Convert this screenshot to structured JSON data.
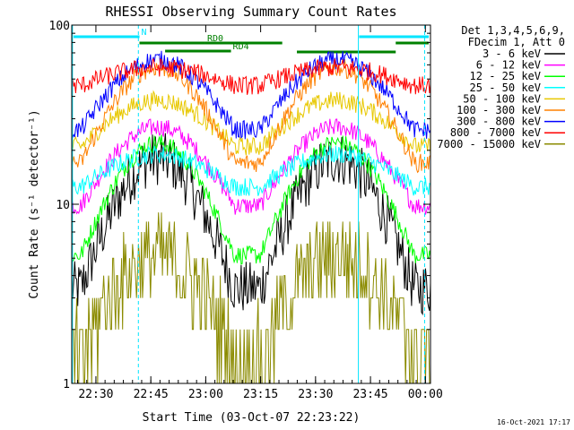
{
  "chart_data": {
    "type": "line",
    "title": "RHESSI Observing Summary Count Rates",
    "xlabel": "Start Time (03-Oct-07 22:23:22)",
    "ylabel": "Count Rate (s⁻¹ detector⁻¹)",
    "yscale": "log",
    "ylim": [
      1,
      100
    ],
    "xlim_minutes": [
      0,
      98
    ],
    "x_ticks": [
      {
        "label": "22:30",
        "minute": 6.6
      },
      {
        "label": "22:45",
        "minute": 21.6
      },
      {
        "label": "23:00",
        "minute": 36.6
      },
      {
        "label": "23:15",
        "minute": 51.6
      },
      {
        "label": "23:30",
        "minute": 66.6
      },
      {
        "label": "23:45",
        "minute": 81.6
      },
      {
        "label": "00:00",
        "minute": 96.6
      }
    ],
    "y_ticks": [
      {
        "label": "1",
        "value": 1
      },
      {
        "label": "10",
        "value": 10
      },
      {
        "label": "100",
        "value": 100
      }
    ],
    "legend_header": [
      "Det 1,3,4,5,6,9,",
      "FDecim 1, Att 0"
    ],
    "legend_position": "top-right",
    "series": [
      {
        "name": "3 - 6 keV",
        "color": "#000000",
        "base": 3.4,
        "peak": 18.0
      },
      {
        "name": "6 - 12 keV",
        "color": "#ff00ff",
        "base": 9.8,
        "peak": 27.0
      },
      {
        "name": "12 - 25 keV",
        "color": "#00ff00",
        "base": 5.2,
        "peak": 22.0
      },
      {
        "name": "25 - 50 keV",
        "color": "#00ffff",
        "base": 12.5,
        "peak": 19.0
      },
      {
        "name": "50 - 100 keV",
        "color": "#e8c800",
        "base": 21.0,
        "peak": 38.0
      },
      {
        "name": "100 - 300 keV",
        "color": "#ff8000",
        "base": 17.0,
        "peak": 58.0
      },
      {
        "name": "300 - 800 keV",
        "color": "#0000ff",
        "base": 26.0,
        "peak": 64.0
      },
      {
        "name": "800 - 7000 keV",
        "color": "#ff0000",
        "base": 46.0,
        "peak": 58.0
      },
      {
        "name": "7000 - 15000 keV",
        "color": "#8b8b00",
        "base": 1.5,
        "peak": 5.2
      }
    ],
    "bars": [
      {
        "label": "N",
        "color": "#00e5ff",
        "start": 0.5,
        "end": 18.5
      },
      {
        "label": "",
        "color": "#00e5ff",
        "start": 78.5,
        "end": 97.5
      },
      {
        "label": "RD0",
        "color": "#008000",
        "start": 18.5,
        "end": 36.5
      },
      {
        "label": "",
        "color": "#008000",
        "start": 36.5,
        "end": 57.5
      },
      {
        "label": "",
        "color": "#008000",
        "start": 61.5,
        "end": 88.5
      },
      {
        "label": "",
        "color": "#008000",
        "start": 88.5,
        "end": 97.5
      },
      {
        "label": "RD4",
        "color": "#008000",
        "start": 25.5,
        "end": 43.5
      }
    ],
    "vertical_lines": [
      {
        "minute": 0.2,
        "style": "solid"
      },
      {
        "minute": 18.2,
        "style": "dashed"
      },
      {
        "minute": 78.3,
        "style": "solid"
      },
      {
        "minute": 96.4,
        "style": "dashed"
      }
    ],
    "saa_minutes": [
      [
        0,
        7
      ],
      [
        43,
        57
      ],
      [
        88,
        98
      ]
    ],
    "peaks_minutes": [
      23.5,
      72.5
    ],
    "grid": false,
    "legend_line_color": "#000000",
    "background": "#ffffff",
    "foreground": "#000000"
  },
  "footer": {
    "date": "16-Oct-2021 17:17"
  }
}
